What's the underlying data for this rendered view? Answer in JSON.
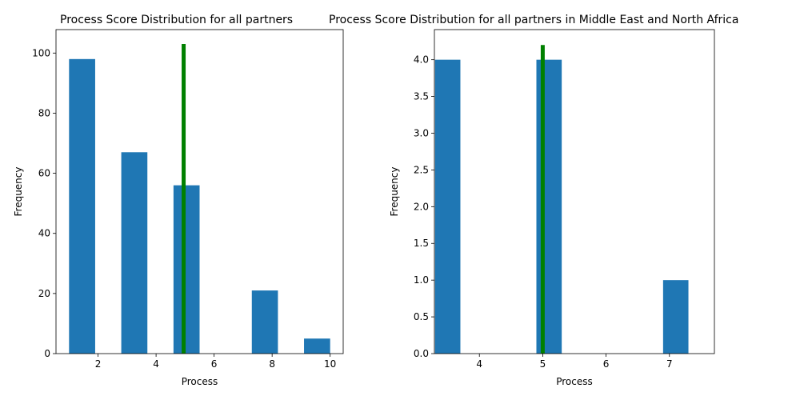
{
  "chart_data": [
    {
      "type": "bar",
      "title": "Process Score Distribution for all partners",
      "xlabel": "Process",
      "ylabel": "Frequency",
      "xlim": [
        0.55,
        10.45
      ],
      "ylim": [
        0,
        107.8
      ],
      "xticks": [
        2,
        4,
        6,
        8,
        10
      ],
      "yticks": [
        0,
        20,
        40,
        60,
        80,
        100
      ],
      "bar_width": 0.9,
      "bar_color": "#1f77b4",
      "bins": [
        {
          "x": 1.45,
          "value": 98
        },
        {
          "x": 2.35,
          "value": 0
        },
        {
          "x": 3.25,
          "value": 67
        },
        {
          "x": 4.15,
          "value": 0
        },
        {
          "x": 5.05,
          "value": 56
        },
        {
          "x": 5.95,
          "value": 0
        },
        {
          "x": 6.85,
          "value": 0
        },
        {
          "x": 7.75,
          "value": 21
        },
        {
          "x": 8.65,
          "value": 0
        },
        {
          "x": 9.55,
          "value": 5
        }
      ],
      "marker_line": {
        "x": 4.95,
        "y_top": 103,
        "color": "#008000"
      }
    },
    {
      "type": "bar",
      "title": "Process Score Distribution for all partners in Middle East and North Africa",
      "xlabel": "Process",
      "ylabel": "Frequency",
      "xlim": [
        3.29,
        7.71
      ],
      "ylim": [
        0,
        4.41
      ],
      "xticks": [
        4,
        5,
        6,
        7
      ],
      "yticks": [
        "0.0",
        "0.5",
        "1.0",
        "1.5",
        "2.0",
        "2.5",
        "3.0",
        "3.5",
        "4.0"
      ],
      "bar_width": 0.4,
      "bar_color": "#1f77b4",
      "bins": [
        {
          "x": 3.5,
          "value": 4
        },
        {
          "x": 3.9,
          "value": 0
        },
        {
          "x": 4.3,
          "value": 0
        },
        {
          "x": 4.7,
          "value": 0
        },
        {
          "x": 5.1,
          "value": 4
        },
        {
          "x": 5.5,
          "value": 0
        },
        {
          "x": 5.9,
          "value": 0
        },
        {
          "x": 6.3,
          "value": 0
        },
        {
          "x": 6.7,
          "value": 0
        },
        {
          "x": 7.1,
          "value": 1
        }
      ],
      "marker_line": {
        "x": 5.0,
        "y_top": 4.2,
        "color": "#008000"
      }
    }
  ]
}
